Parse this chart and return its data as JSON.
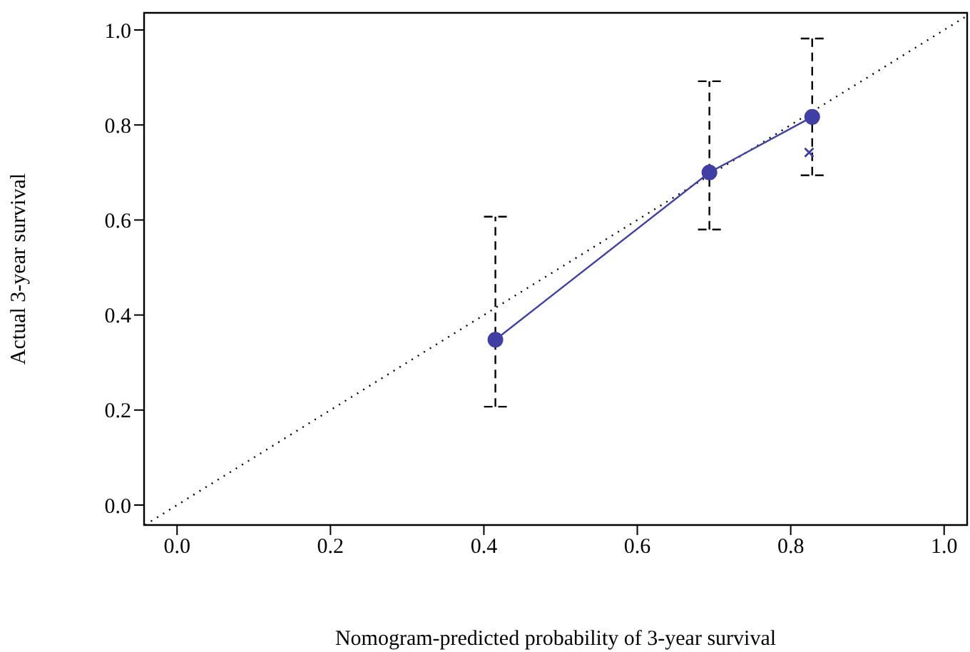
{
  "chart_data": {
    "type": "line",
    "xlabel": "Nomogram-predicted probability of 3-year survival",
    "ylabel": "Actual 3-year survival",
    "xlim": [
      -0.043,
      1.03
    ],
    "ylim": [
      -0.042,
      1.036
    ],
    "xticks": [
      {
        "value": 0,
        "label": "0.0"
      },
      0.2,
      0.4,
      0.6,
      0.8,
      {
        "value": 1,
        "label": "1.0"
      }
    ],
    "yticks": [
      {
        "value": 0,
        "label": "0.0"
      },
      0.2,
      0.4,
      0.6,
      0.8,
      {
        "value": 1,
        "label": "1.0"
      }
    ],
    "grid": false,
    "series": [
      {
        "type": "line",
        "x": [
          -0.042,
          1.03
        ],
        "values": [
          -0.042,
          1.03
        ],
        "color": "#000000",
        "line_style": "dotted",
        "marker": "none"
      },
      {
        "x": [
          0.415,
          0.694,
          0.828
        ],
        "values": [
          0.348,
          0.7,
          0.817
        ],
        "errors": [
          [
            0.207,
            0.607
          ],
          [
            0.58,
            0.892
          ],
          [
            0.694,
            0.982
          ]
        ],
        "color": "#3f3fa5",
        "line_style": "solid",
        "marker": "circle"
      },
      {
        "type": "scatter",
        "x": [
          0.824
        ],
        "values": [
          0.742
        ],
        "color": "#3f3fa5",
        "marker": "cross"
      }
    ]
  }
}
